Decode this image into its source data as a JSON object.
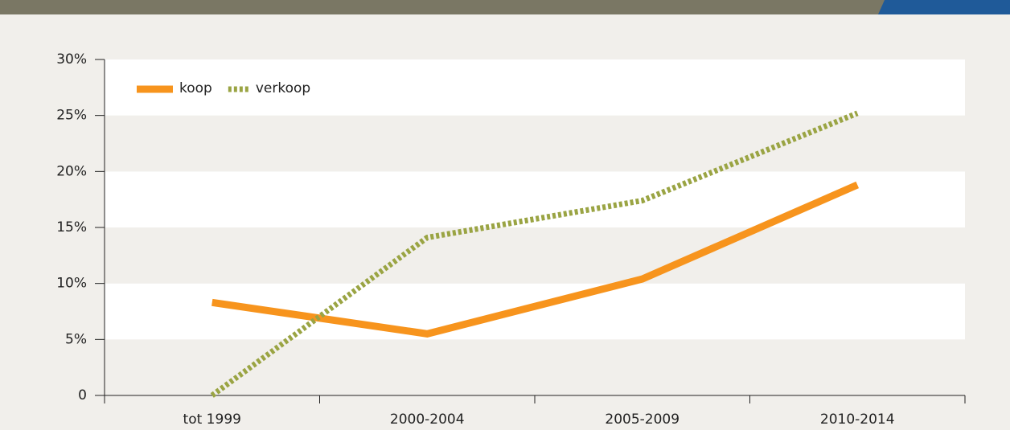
{
  "chart_data": {
    "type": "line",
    "categories": [
      "tot 1999",
      "2000-2004",
      "2005-2009",
      "2010-2014"
    ],
    "series": [
      {
        "name": "koop",
        "color": "#f7941d",
        "values": [
          8.3,
          5.5,
          10.4,
          18.8
        ]
      },
      {
        "name": "verkoop",
        "color": "#9aa443",
        "values": [
          0,
          14.1,
          17.4,
          25.2
        ]
      }
    ],
    "ylim": [
      0,
      30
    ],
    "yticks": [
      0,
      {
        "value": 5,
        "label": "5%"
      },
      {
        "value": 10,
        "label": "10%"
      },
      {
        "value": 15,
        "label": "15%"
      },
      {
        "value": 20,
        "label": "20%"
      },
      {
        "value": 25,
        "label": "25%"
      },
      {
        "value": 30,
        "label": "30%"
      }
    ],
    "grid": true,
    "legend": "top-left"
  }
}
